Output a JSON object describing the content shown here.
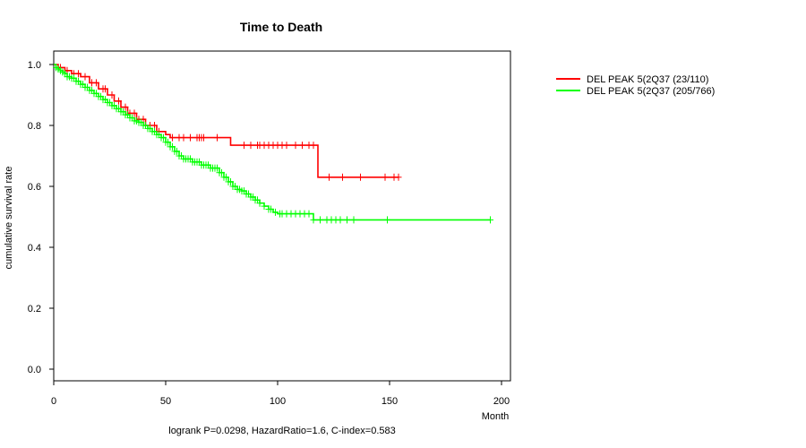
{
  "chart_data": {
    "type": "line",
    "title": "Time to Death",
    "xlabel": "Month",
    "ylabel": "cumulative survival rate",
    "xlim": [
      0,
      200
    ],
    "ylim": [
      0.0,
      1.0
    ],
    "xticks": [
      "0",
      "50",
      "100",
      "150",
      "200"
    ],
    "yticks": [
      "0.0",
      "0.2",
      "0.4",
      "0.6",
      "0.8",
      "1.0"
    ],
    "annotation": "logrank P=0.0298, HazardRatio=1.6, C-index=0.583",
    "legend_position": "top-right outside",
    "series": [
      {
        "name": "DEL PEAK  5(2Q37 (23/110)",
        "color": "#ff0000",
        "steps": [
          [
            0,
            1.0
          ],
          [
            2,
            0.99
          ],
          [
            5,
            0.98
          ],
          [
            8,
            0.97
          ],
          [
            12,
            0.96
          ],
          [
            16,
            0.94
          ],
          [
            20,
            0.92
          ],
          [
            24,
            0.9
          ],
          [
            27,
            0.88
          ],
          [
            30,
            0.86
          ],
          [
            33,
            0.84
          ],
          [
            37,
            0.82
          ],
          [
            41,
            0.8
          ],
          [
            46,
            0.78
          ],
          [
            50,
            0.77
          ],
          [
            52,
            0.76
          ],
          [
            79,
            0.735
          ],
          [
            118,
            0.63
          ],
          [
            154,
            0.63
          ]
        ],
        "censors": [
          3,
          6,
          9,
          11,
          14,
          17,
          19,
          22,
          23,
          26,
          29,
          32,
          34,
          36,
          38,
          40,
          43,
          45,
          47,
          53,
          56,
          58,
          61,
          64,
          65,
          66,
          67,
          73,
          85,
          88,
          91,
          92,
          94,
          96,
          98,
          100,
          102,
          104,
          108,
          111,
          114,
          116,
          123,
          129,
          137,
          148,
          152,
          154
        ]
      },
      {
        "name": "DEL PEAK  5(2Q37 (205/766)",
        "color": "#00ff00",
        "steps": [
          [
            0,
            1.0
          ],
          [
            1,
            0.99
          ],
          [
            2,
            0.985
          ],
          [
            3,
            0.98
          ],
          [
            4,
            0.975
          ],
          [
            5,
            0.97
          ],
          [
            6,
            0.96
          ],
          [
            8,
            0.955
          ],
          [
            10,
            0.945
          ],
          [
            12,
            0.935
          ],
          [
            14,
            0.925
          ],
          [
            16,
            0.915
          ],
          [
            18,
            0.905
          ],
          [
            20,
            0.895
          ],
          [
            22,
            0.885
          ],
          [
            24,
            0.875
          ],
          [
            26,
            0.865
          ],
          [
            28,
            0.855
          ],
          [
            30,
            0.845
          ],
          [
            32,
            0.835
          ],
          [
            34,
            0.825
          ],
          [
            36,
            0.815
          ],
          [
            38,
            0.81
          ],
          [
            40,
            0.8
          ],
          [
            42,
            0.79
          ],
          [
            44,
            0.78
          ],
          [
            46,
            0.77
          ],
          [
            48,
            0.76
          ],
          [
            50,
            0.745
          ],
          [
            52,
            0.73
          ],
          [
            54,
            0.715
          ],
          [
            56,
            0.7
          ],
          [
            58,
            0.69
          ],
          [
            62,
            0.68
          ],
          [
            66,
            0.67
          ],
          [
            70,
            0.66
          ],
          [
            74,
            0.645
          ],
          [
            76,
            0.63
          ],
          [
            78,
            0.615
          ],
          [
            80,
            0.6
          ],
          [
            82,
            0.59
          ],
          [
            84,
            0.585
          ],
          [
            86,
            0.575
          ],
          [
            88,
            0.565
          ],
          [
            90,
            0.555
          ],
          [
            92,
            0.545
          ],
          [
            94,
            0.535
          ],
          [
            96,
            0.525
          ],
          [
            98,
            0.515
          ],
          [
            100,
            0.51
          ],
          [
            116,
            0.49
          ],
          [
            118,
            0.49
          ],
          [
            195,
            0.49
          ]
        ],
        "censors": [
          1,
          2,
          3,
          4,
          5,
          6,
          7,
          8,
          9,
          10,
          11,
          12,
          13,
          14,
          15,
          16,
          17,
          18,
          19,
          20,
          21,
          22,
          23,
          24,
          25,
          26,
          27,
          28,
          29,
          30,
          31,
          32,
          33,
          34,
          35,
          36,
          37,
          38,
          39,
          40,
          41,
          42,
          43,
          44,
          45,
          46,
          47,
          48,
          49,
          50,
          51,
          52,
          53,
          54,
          55,
          56,
          57,
          58,
          59,
          60,
          61,
          62,
          63,
          64,
          65,
          66,
          67,
          68,
          69,
          70,
          71,
          72,
          73,
          74,
          75,
          76,
          77,
          78,
          79,
          80,
          81,
          82,
          83,
          84,
          85,
          86,
          87,
          88,
          89,
          90,
          91,
          92,
          94,
          96,
          97,
          99,
          101,
          102,
          104,
          106,
          108,
          110,
          112,
          114,
          116,
          119,
          122,
          124,
          126,
          128,
          131,
          134,
          149,
          195
        ]
      }
    ]
  }
}
